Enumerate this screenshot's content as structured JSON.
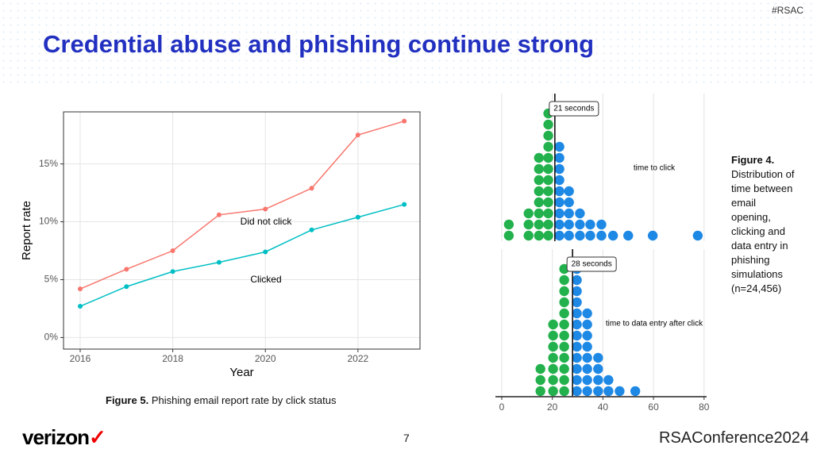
{
  "header": {
    "hashtag": "#RSAC",
    "title": "Credential abuse and phishing continue strong"
  },
  "chart_data": [
    {
      "type": "line",
      "xlabel": "Year",
      "ylabel": "Report rate",
      "x": [
        2016,
        2017,
        2018,
        2019,
        2020,
        2021,
        2022,
        2023
      ],
      "xlim": [
        2015.64,
        2023.34
      ],
      "xticks": [
        2016,
        2018,
        2020,
        2022
      ],
      "ylim": [
        -1,
        19.5
      ],
      "yticks": [
        {
          "value": 0,
          "label": "0%"
        },
        {
          "value": 5,
          "label": "5%"
        },
        {
          "value": 10,
          "label": "10%"
        },
        {
          "value": 15,
          "label": "15%"
        }
      ],
      "grid": true,
      "series": [
        {
          "name": "Did not click",
          "color": "#f8766d",
          "values": [
            4.2,
            5.9,
            7.5,
            10.6,
            11.1,
            12.9,
            17.5,
            18.7
          ]
        },
        {
          "name": "Clicked",
          "color": "#00bfc4",
          "values": [
            2.7,
            4.4,
            5.7,
            6.5,
            7.4,
            9.3,
            10.4,
            11.5
          ]
        }
      ]
    },
    {
      "type": "dotplot",
      "xlim": [
        -2.5,
        81
      ],
      "xticks": [
        0,
        20,
        40,
        60,
        80
      ],
      "grid": true,
      "panels": [
        {
          "median": 21,
          "median_label": "21 seconds",
          "annotation": "time to click",
          "series": [
            {
              "color": "#22b14c",
              "x": [
                2.8,
                10.6,
                14.7,
                18.4
              ],
              "values": [
                2,
                3,
                8,
                12
              ]
            },
            {
              "color": "#1e88e5",
              "x": [
                22.8,
                26.6,
                30.9,
                35,
                39.4,
                44,
                50,
                59.7,
                77.5
              ],
              "values": [
                9,
                5,
                3,
                2,
                2,
                1,
                1,
                1,
                1
              ]
            }
          ]
        },
        {
          "median": 28,
          "median_label": "28 seconds",
          "annotation": "time to data entry after click",
          "series": [
            {
              "color": "#22b14c",
              "x": [
                15.3,
                20.3,
                24.7
              ],
              "values": [
                3,
                7,
                12
              ]
            },
            {
              "color": "#1e88e5",
              "x": [
                29.7,
                33.8,
                38.1,
                42.2,
                46.6,
                52.8
              ],
              "values": [
                12,
                8,
                4,
                2,
                1,
                1
              ]
            }
          ]
        }
      ]
    }
  ],
  "captions": [
    {
      "label": "Figure 5.",
      "text": "Phishing email report rate by click status"
    },
    {
      "label": "Figure 4.",
      "text": "Distribution of time between email opening, clicking and data entry in phishing simulations (n=24,456)"
    }
  ],
  "footer": {
    "left_logo": "verizon",
    "page": "7",
    "right_logo": "RSAConference2024"
  }
}
